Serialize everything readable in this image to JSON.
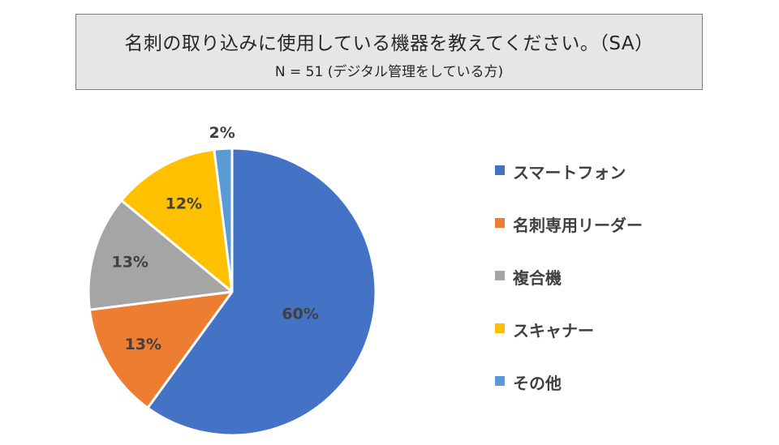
{
  "header": {
    "title": "名刺の取り込みに使用している機器を教えてください。（SA）",
    "subtitle": "N = 51 (デジタル管理をしている方)"
  },
  "chart_data": {
    "type": "pie",
    "title": "名刺の取り込みに使用している機器を教えてください。（SA）",
    "subtitle": "N = 51 (デジタル管理をしている方)",
    "legend_position": "right",
    "start_angle_deg": 0,
    "direction": "clockwise",
    "slices": [
      {
        "label": "スマートフォン",
        "value": 60,
        "display": "60%",
        "color": "#4472c4"
      },
      {
        "label": "名刺専用リーダー",
        "value": 13,
        "display": "13%",
        "color": "#ed7d31"
      },
      {
        "label": "複合機",
        "value": 13,
        "display": "13%",
        "color": "#a5a5a5"
      },
      {
        "label": "スキャナー",
        "value": 12,
        "display": "12%",
        "color": "#ffc000"
      },
      {
        "label": "その他",
        "value": 2,
        "display": "2%",
        "color": "#5b9bd5"
      }
    ]
  }
}
